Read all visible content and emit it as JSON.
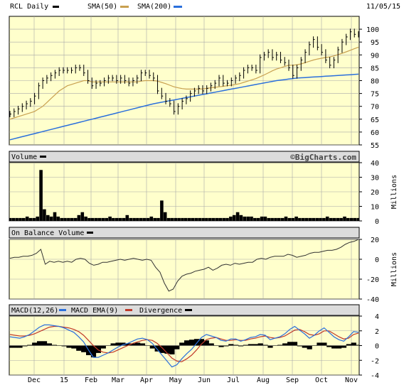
{
  "header": {
    "ticker_label": "RCL Daily",
    "sma50_label": "SMA(50)",
    "sma200_label": "SMA(200)",
    "date": "11/05/15",
    "colors": {
      "price": "#000000",
      "sma50": "#c8a050",
      "sma200": "#2a6fdc"
    }
  },
  "panels": {
    "volume_title": "Volume",
    "watermark": "©BigCharts.com",
    "volume_axis_label": "Millions",
    "obv_title": "On Balance Volume",
    "obv_axis_label": "Millions",
    "macd_title": "MACD(12,26)",
    "macd_ema_label": "MACD EMA(9)",
    "divergence_label": "Divergence",
    "colors": {
      "macd": "#2a6fdc",
      "macd_ema": "#c03a2a",
      "divergence": "#000000"
    }
  },
  "chart_data": {
    "type": "line",
    "x_tick_labels": [
      "Dec",
      "15",
      "Feb",
      "Mar",
      "Apr",
      "May",
      "Jun",
      "Jul",
      "Aug",
      "Sep",
      "Oct",
      "Nov"
    ],
    "price_panel": {
      "ylim": [
        55,
        105
      ],
      "yticks": [
        100,
        95,
        90,
        85,
        80,
        75,
        70,
        65,
        60,
        55
      ],
      "price": [
        67,
        68,
        69,
        70,
        71,
        72,
        74,
        78,
        80,
        81,
        82,
        83,
        84,
        84,
        84,
        84,
        85,
        85,
        83,
        80,
        78,
        79,
        79,
        80,
        81,
        81,
        80,
        81,
        80,
        79,
        80,
        81,
        83,
        83,
        82,
        81,
        76,
        74,
        72,
        71,
        68,
        70,
        72,
        73,
        75,
        76,
        77,
        76,
        77,
        78,
        79,
        81,
        79,
        79,
        80,
        81,
        82,
        84,
        85,
        85,
        84,
        89,
        90,
        91,
        89,
        90,
        88,
        87,
        85,
        82,
        85,
        88,
        91,
        94,
        96,
        93,
        91,
        88,
        86,
        88,
        92,
        95,
        97,
        99,
        98,
        98
      ],
      "sma50": [
        65,
        65.5,
        66,
        66.5,
        67,
        67.5,
        68,
        69,
        70,
        71.5,
        73,
        74.5,
        76,
        77,
        78,
        78.5,
        79,
        79.5,
        80,
        80,
        79.5,
        79.5,
        79.5,
        79.5,
        79.5,
        79.5,
        79.5,
        79.5,
        79.5,
        79.5,
        79.5,
        79.5,
        79.8,
        80,
        80,
        80,
        79.8,
        79.3,
        78.8,
        78.2,
        77.6,
        77.2,
        76.9,
        76.7,
        76.7,
        76.7,
        76.7,
        76.8,
        77,
        77.2,
        77.4,
        77.6,
        77.8,
        78,
        78.2,
        78.5,
        78.8,
        79.3,
        79.8,
        80.3,
        80.8,
        81.5,
        82.2,
        83,
        83.8,
        84.5,
        85,
        85.5,
        86,
        86,
        86.2,
        86.5,
        87,
        87.5,
        88,
        88.4,
        88.7,
        89,
        89.2,
        89.6,
        90.1,
        90.6,
        91.2,
        91.8,
        92.4,
        93
      ],
      "sma200": [
        57,
        57.4,
        57.8,
        58.2,
        58.6,
        59,
        59.4,
        59.8,
        60.2,
        60.6,
        61,
        61.4,
        61.8,
        62.2,
        62.6,
        63,
        63.4,
        63.8,
        64.2,
        64.6,
        65,
        65.4,
        65.8,
        66.2,
        66.6,
        67,
        67.4,
        67.8,
        68.2,
        68.6,
        69,
        69.4,
        69.8,
        70.2,
        70.6,
        71,
        71.3,
        71.6,
        71.9,
        72.2,
        72.5,
        72.8,
        73.1,
        73.4,
        73.7,
        74,
        74.3,
        74.6,
        74.9,
        75.2,
        75.5,
        75.8,
        76.1,
        76.4,
        76.7,
        77,
        77.3,
        77.6,
        77.9,
        78.2,
        78.5,
        78.8,
        79.1,
        79.4,
        79.7,
        80,
        80.2,
        80.4,
        80.6,
        80.8,
        81,
        81.1,
        81.2,
        81.3,
        81.4,
        81.5,
        81.6,
        81.7,
        81.8,
        81.9,
        82,
        82.1,
        82.2,
        82.3,
        82.4,
        82.5
      ]
    },
    "volume_panel": {
      "ylim": [
        0,
        40
      ],
      "yticks": [
        40,
        30,
        20,
        10,
        0
      ],
      "units": "Millions",
      "values": [
        2,
        2,
        2,
        2,
        2,
        3,
        2,
        2,
        3,
        35,
        8,
        4,
        3,
        6,
        3,
        2,
        2,
        2,
        2,
        2,
        4,
        6,
        3,
        2,
        2,
        2,
        2,
        2,
        2,
        3,
        2,
        2,
        2,
        2,
        4,
        2,
        2,
        2,
        2,
        2,
        2,
        3,
        2,
        2,
        14,
        6,
        2,
        2,
        2,
        2,
        2,
        2,
        2,
        2,
        2,
        2,
        2,
        2,
        2,
        2,
        2,
        2,
        2,
        2,
        3,
        4,
        6,
        4,
        3,
        3,
        3,
        2,
        2,
        3,
        3,
        2,
        2,
        2,
        2,
        2,
        3,
        2,
        2,
        3,
        2,
        2,
        2,
        2,
        2,
        2,
        2,
        2,
        3,
        2,
        2,
        2,
        2,
        3,
        2,
        2,
        2,
        2
      ]
    },
    "obv_panel": {
      "ylim": [
        -40,
        20
      ],
      "yticks": [
        20,
        0,
        -20,
        -40
      ],
      "units": "Millions",
      "values": [
        1,
        2,
        2,
        3,
        3,
        4,
        6,
        10,
        -5,
        -2,
        -3,
        -2,
        -3,
        -2,
        -3,
        0,
        1,
        0,
        -4,
        -6,
        -5,
        -3,
        -3,
        -2,
        -1,
        0,
        -1,
        0,
        1,
        0,
        -1,
        0,
        -1,
        -8,
        -13,
        -24,
        -32,
        -30,
        -22,
        -17,
        -15,
        -14,
        -12,
        -11,
        -10,
        -8,
        -11,
        -9,
        -6,
        -5,
        -6,
        -4,
        -5,
        -4,
        -3,
        -3,
        0,
        1,
        0,
        2,
        3,
        3,
        3,
        5,
        4,
        2,
        3,
        4,
        6,
        7,
        7,
        8,
        9,
        9,
        10,
        12,
        15,
        17,
        18,
        20
      ]
    },
    "macd_panel": {
      "ylim": [
        -4,
        4
      ],
      "yticks": [
        4,
        2,
        0,
        -2,
        -4
      ],
      "macd": [
        1.2,
        1.1,
        1.0,
        1.2,
        1.5,
        2.0,
        2.5,
        2.8,
        2.8,
        2.7,
        2.6,
        2.4,
        2.1,
        1.8,
        1.2,
        0.5,
        -0.6,
        -1.6,
        -1.6,
        -1.3,
        -1.0,
        -0.6,
        -0.2,
        0.1,
        0.3,
        0.6,
        0.9,
        1.0,
        0.8,
        0.3,
        -0.5,
        -1.3,
        -2.1,
        -2.9,
        -2.6,
        -1.8,
        -1.1,
        -0.5,
        0.3,
        1.1,
        1.5,
        1.3,
        1.1,
        0.7,
        0.6,
        0.9,
        0.9,
        0.6,
        0.8,
        1.1,
        1.2,
        1.5,
        1.4,
        0.8,
        1.0,
        1.2,
        1.6,
        2.2,
        2.6,
        2.1,
        1.6,
        1.0,
        1.4,
        2.0,
        2.4,
        1.8,
        1.2,
        0.8,
        0.6,
        1.2,
        1.9,
        1.8
      ],
      "macd_ema": [
        1.5,
        1.4,
        1.3,
        1.3,
        1.4,
        1.6,
        1.9,
        2.2,
        2.5,
        2.6,
        2.6,
        2.5,
        2.4,
        2.2,
        1.9,
        1.4,
        0.7,
        0.0,
        -0.6,
        -0.9,
        -1.0,
        -0.9,
        -0.6,
        -0.3,
        0.0,
        0.3,
        0.5,
        0.7,
        0.8,
        0.7,
        0.3,
        -0.3,
        -1.0,
        -1.7,
        -2.1,
        -2.2,
        -1.8,
        -1.3,
        -0.6,
        0.2,
        0.8,
        1.0,
        1.1,
        0.9,
        0.7,
        0.7,
        0.8,
        0.7,
        0.7,
        0.9,
        1.0,
        1.2,
        1.3,
        1.1,
        1.0,
        1.1,
        1.3,
        1.7,
        2.1,
        2.2,
        1.9,
        1.5,
        1.4,
        1.6,
        2.0,
        2.0,
        1.6,
        1.2,
        0.9,
        1.0,
        1.5,
        1.7
      ],
      "divergence": [
        -0.3,
        -0.3,
        -0.3,
        -0.1,
        0.1,
        0.4,
        0.6,
        0.6,
        0.3,
        0.1,
        0.0,
        -0.1,
        -0.3,
        -0.4,
        -0.7,
        -0.9,
        -1.3,
        -1.6,
        -1.0,
        -0.4,
        0.0,
        0.3,
        0.4,
        0.4,
        0.3,
        0.3,
        0.4,
        0.3,
        0.0,
        -0.4,
        -0.8,
        -1.0,
        -1.1,
        -1.2,
        -0.5,
        0.4,
        0.7,
        0.8,
        0.9,
        0.9,
        0.7,
        0.3,
        0.0,
        -0.2,
        -0.1,
        0.2,
        0.1,
        -0.1,
        0.1,
        0.2,
        0.2,
        0.3,
        0.1,
        -0.3,
        0.0,
        0.1,
        0.3,
        0.5,
        0.5,
        -0.1,
        -0.3,
        -0.5,
        0.0,
        0.4,
        0.4,
        -0.2,
        -0.4,
        -0.4,
        -0.3,
        0.2,
        0.4,
        0.1
      ]
    }
  }
}
